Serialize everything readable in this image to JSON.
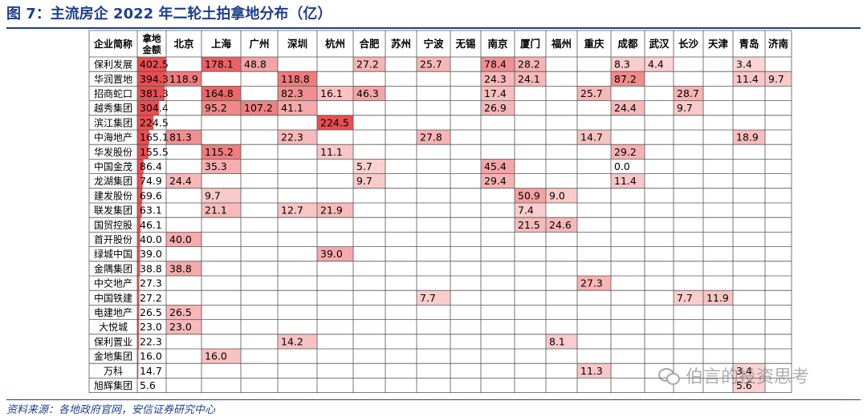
{
  "title": "图 7：主流房企 2022 年二轮土拍拿地分布（亿）",
  "source": "资料来源：各地政府官网，安信证券研究中心",
  "watermark": "伯言的投资思考",
  "colors": {
    "title": "#1f3f8a",
    "grid": "#555555",
    "heat_low": "#fde4e4",
    "heat_high": "#e84f52"
  },
  "chart_data": {
    "type": "table",
    "columns": [
      "企业简称",
      "拿地金额",
      "北京",
      "上海",
      "广州",
      "深圳",
      "杭州",
      "合肥",
      "苏州",
      "宁波",
      "无锡",
      "南京",
      "厦门",
      "福州",
      "重庆",
      "成都",
      "武汉",
      "长沙",
      "天津",
      "青岛",
      "济南"
    ],
    "rows": [
      {
        "name": "保利发展",
        "total": "402.5",
        "cells": [
          "",
          "178.1",
          "48.8",
          "",
          "",
          "27.2",
          "",
          "25.7",
          "",
          "78.4",
          "28.2",
          "",
          "",
          "8.3",
          "4.4",
          "",
          "",
          "3.4",
          ""
        ]
      },
      {
        "name": "华润置地",
        "total": "394.3",
        "cells": [
          "118.9",
          "",
          "",
          "118.8",
          "",
          "",
          "",
          "",
          "",
          "24.3",
          "24.1",
          "",
          "",
          "87.2",
          "",
          "",
          "",
          "11.4",
          "9.7"
        ]
      },
      {
        "name": "招商蛇口",
        "total": "381.3",
        "cells": [
          "",
          "164.8",
          "",
          "82.3",
          "16.1",
          "46.3",
          "",
          "",
          "",
          "17.4",
          "",
          "",
          "25.7",
          "",
          "",
          "28.7",
          "",
          "",
          ""
        ]
      },
      {
        "name": "越秀集团",
        "total": "304.4",
        "cells": [
          "",
          "95.2",
          "107.2",
          "41.1",
          "",
          "",
          "",
          "",
          "",
          "26.9",
          "",
          "",
          "",
          "24.4",
          "",
          "9.7",
          "",
          "",
          ""
        ]
      },
      {
        "name": "滨江集团",
        "total": "224.5",
        "cells": [
          "",
          "",
          "",
          "",
          "224.5",
          "",
          "",
          "",
          "",
          "",
          "",
          "",
          "",
          "",
          "",
          "",
          "",
          "",
          ""
        ]
      },
      {
        "name": "中海地产",
        "total": "165.1",
        "cells": [
          "81.3",
          "",
          "",
          "22.3",
          "",
          "",
          "",
          "27.8",
          "",
          "",
          "",
          "",
          "14.7",
          "",
          "",
          "",
          "",
          "18.9",
          ""
        ]
      },
      {
        "name": "华发股份",
        "total": "155.5",
        "cells": [
          "",
          "115.2",
          "",
          "",
          "11.1",
          "",
          "",
          "",
          "",
          "",
          "",
          "",
          "",
          "29.2",
          "",
          "",
          "",
          "",
          ""
        ]
      },
      {
        "name": "中国金茂",
        "total": "86.4",
        "cells": [
          "",
          "35.3",
          "",
          "",
          "",
          "5.7",
          "",
          "",
          "",
          "45.4",
          "",
          "",
          "",
          "0.0",
          "",
          "",
          "",
          "",
          ""
        ]
      },
      {
        "name": "龙湖集团",
        "total": "74.9",
        "cells": [
          "24.4",
          "",
          "",
          "",
          "",
          "9.7",
          "",
          "",
          "",
          "29.4",
          "",
          "",
          "",
          "11.4",
          "",
          "",
          "",
          "",
          ""
        ]
      },
      {
        "name": "建发股份",
        "total": "69.6",
        "cells": [
          "",
          "9.7",
          "",
          "",
          "",
          "",
          "",
          "",
          "",
          "",
          "50.9",
          "9.0",
          "",
          "",
          "",
          "",
          "",
          "",
          ""
        ]
      },
      {
        "name": "联发集团",
        "total": "63.1",
        "cells": [
          "",
          "21.1",
          "",
          "12.7",
          "21.9",
          "",
          "",
          "",
          "",
          "",
          "7.4",
          "",
          "",
          "",
          "",
          "",
          "",
          "",
          ""
        ]
      },
      {
        "name": "国贸控股",
        "total": "46.1",
        "cells": [
          "",
          "",
          "",
          "",
          "",
          "",
          "",
          "",
          "",
          "",
          "21.5",
          "24.6",
          "",
          "",
          "",
          "",
          "",
          "",
          ""
        ]
      },
      {
        "name": "首开股份",
        "total": "40.0",
        "cells": [
          "40.0",
          "",
          "",
          "",
          "",
          "",
          "",
          "",
          "",
          "",
          "",
          "",
          "",
          "",
          "",
          "",
          "",
          "",
          ""
        ]
      },
      {
        "name": "绿城中国",
        "total": "39.0",
        "cells": [
          "",
          "",
          "",
          "",
          "39.0",
          "",
          "",
          "",
          "",
          "",
          "",
          "",
          "",
          "",
          "",
          "",
          "",
          "",
          ""
        ]
      },
      {
        "name": "金隅集团",
        "total": "38.8",
        "cells": [
          "38.8",
          "",
          "",
          "",
          "",
          "",
          "",
          "",
          "",
          "",
          "",
          "",
          "",
          "",
          "",
          "",
          "",
          "",
          ""
        ]
      },
      {
        "name": "中交地产",
        "total": "27.3",
        "cells": [
          "",
          "",
          "",
          "",
          "",
          "",
          "",
          "",
          "",
          "",
          "",
          "",
          "27.3",
          "",
          "",
          "",
          "",
          "",
          ""
        ]
      },
      {
        "name": "中国铁建",
        "total": "27.2",
        "cells": [
          "",
          "",
          "",
          "",
          "",
          "",
          "",
          "7.7",
          "",
          "",
          "",
          "",
          "",
          "",
          "",
          "7.7",
          "11.9",
          "",
          ""
        ]
      },
      {
        "name": "电建地产",
        "total": "26.5",
        "cells": [
          "26.5",
          "",
          "",
          "",
          "",
          "",
          "",
          "",
          "",
          "",
          "",
          "",
          "",
          "",
          "",
          "",
          "",
          "",
          ""
        ]
      },
      {
        "name": "大悦城",
        "total": "23.0",
        "cells": [
          "23.0",
          "",
          "",
          "",
          "",
          "",
          "",
          "",
          "",
          "",
          "",
          "",
          "",
          "",
          "",
          "",
          "",
          "",
          ""
        ]
      },
      {
        "name": "保利置业",
        "total": "22.3",
        "cells": [
          "",
          "",
          "",
          "14.2",
          "",
          "",
          "",
          "",
          "",
          "",
          "",
          "8.1",
          "",
          "",
          "",
          "",
          "",
          "",
          ""
        ]
      },
      {
        "name": "金地集团",
        "total": "16.0",
        "cells": [
          "",
          "16.0",
          "",
          "",
          "",
          "",
          "",
          "",
          "",
          "",
          "",
          "",
          "",
          "",
          "",
          "",
          "",
          "",
          ""
        ]
      },
      {
        "name": "万科",
        "total": "14.7",
        "cells": [
          "",
          "",
          "",
          "",
          "",
          "",
          "",
          "",
          "",
          "",
          "",
          "",
          "11.3",
          "",
          "",
          "",
          "",
          "3.4",
          ""
        ]
      },
      {
        "name": "旭辉集团",
        "total": "5.6",
        "cells": [
          "",
          "",
          "",
          "",
          "",
          "",
          "",
          "",
          "",
          "",
          "",
          "",
          "",
          "",
          "",
          "",
          "",
          "5.6",
          ""
        ]
      }
    ]
  }
}
